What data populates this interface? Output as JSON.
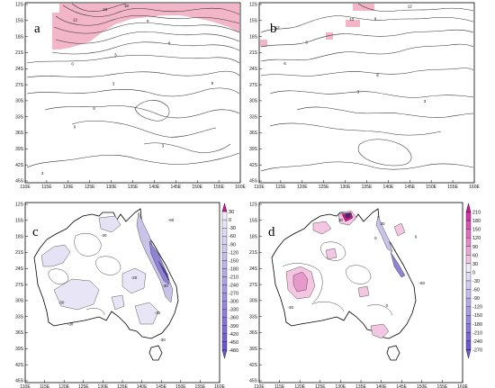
{
  "chart_data": [
    {
      "panel": "a",
      "type": "heatmap",
      "x_ticks": [
        "110E",
        "115E",
        "120E",
        "125E",
        "130E",
        "135E",
        "140E",
        "145E",
        "150E",
        "155E",
        "160E"
      ],
      "y_ticks": [
        "12S",
        "15S",
        "18S",
        "21S",
        "24S",
        "27S",
        "30S",
        "33S",
        "36S",
        "39S",
        "42S",
        "45S"
      ],
      "xlim": [
        110,
        160
      ],
      "ylim": [
        -45,
        -12
      ],
      "contour_labels": [
        {
          "text": "18",
          "x": 133.5,
          "y": -12.8
        },
        {
          "text": "15",
          "x": 128.6,
          "y": -13.5
        },
        {
          "text": "12",
          "x": 121.6,
          "y": -15.4
        },
        {
          "text": "9",
          "x": 138.5,
          "y": -15.6
        },
        {
          "text": "6",
          "x": 143.5,
          "y": -19.7
        },
        {
          "text": "3",
          "x": 131.0,
          "y": -21.8
        },
        {
          "text": "0",
          "x": 121.0,
          "y": -23.5
        },
        {
          "text": "3",
          "x": 130.5,
          "y": -27.1
        },
        {
          "text": "0",
          "x": 126.0,
          "y": -31.6
        },
        {
          "text": "0",
          "x": 121.5,
          "y": -35.0
        },
        {
          "text": "3",
          "x": 142.0,
          "y": -38.5
        },
        {
          "text": "9",
          "x": 153.5,
          "y": -27.0
        },
        {
          "text": "3",
          "x": 114.0,
          "y": -43.5
        }
      ],
      "shaded_region": "values above 9 (pink), northern Australia"
    },
    {
      "panel": "b",
      "type": "heatmap",
      "x_ticks": [
        "110E",
        "115E",
        "120E",
        "125E",
        "130E",
        "135E",
        "140E",
        "145E",
        "150E",
        "155E",
        "160E"
      ],
      "y_ticks": [
        "12S",
        "15S",
        "18S",
        "21S",
        "24S",
        "27S",
        "30S",
        "33S",
        "36S",
        "39S",
        "42S",
        "45S"
      ],
      "xlim": [
        110,
        160
      ],
      "ylim": [
        -45,
        -12
      ],
      "contour_labels": [
        {
          "text": "12",
          "x": 145.0,
          "y": -12.9
        },
        {
          "text": "12",
          "x": 114.2,
          "y": -16.8
        },
        {
          "text": "12",
          "x": 131.5,
          "y": -15.3
        },
        {
          "text": "9",
          "x": 137.0,
          "y": -15.2
        },
        {
          "text": "6",
          "x": 121.0,
          "y": -19.5
        },
        {
          "text": "6",
          "x": 116.0,
          "y": -23.4
        },
        {
          "text": "6",
          "x": 137.5,
          "y": -25.5
        },
        {
          "text": "3",
          "x": 133.0,
          "y": -28.6
        },
        {
          "text": "3",
          "x": 148.5,
          "y": -30.3
        }
      ],
      "shaded_region": "values above 9 (pink), northern Australia"
    },
    {
      "panel": "c",
      "type": "heatmap",
      "x_ticks": [
        "110E",
        "115E",
        "120E",
        "125E",
        "130E",
        "135E",
        "140E",
        "145E",
        "150E",
        "155E",
        "160E"
      ],
      "y_ticks": [
        "12S",
        "15S",
        "18S",
        "21S",
        "24S",
        "27S",
        "30S",
        "33S",
        "36S",
        "39S",
        "42S",
        "45S"
      ],
      "xlim": [
        110,
        160
      ],
      "ylim": [
        -45,
        -12
      ],
      "colorbar": [
        "30",
        "0",
        "-30",
        "-60",
        "-90",
        "-120",
        "-150",
        "-180",
        "-210",
        "-240",
        "-270",
        "-300",
        "-330",
        "-360",
        "-390",
        "-420",
        "-450",
        "-480"
      ],
      "contour_labels": [
        {
          "text": "-30",
          "x": 130.2,
          "y": -18.3
        },
        {
          "text": "-30",
          "x": 138.0,
          "y": -26.0
        },
        {
          "text": "-30",
          "x": 119.3,
          "y": -30.6
        },
        {
          "text": "-30",
          "x": 121.6,
          "y": -34.5
        },
        {
          "text": "-30",
          "x": 146.0,
          "y": -27.5
        },
        {
          "text": "-30",
          "x": 144.0,
          "y": -32.5
        },
        {
          "text": "-30",
          "x": 145.3,
          "y": -37.4
        },
        {
          "text": "-60",
          "x": 147.5,
          "y": -15.5
        }
      ]
    },
    {
      "panel": "d",
      "type": "heatmap",
      "x_ticks": [
        "110E",
        "115E",
        "120E",
        "125E",
        "130E",
        "135E",
        "140E",
        "145E",
        "150E",
        "155E",
        "160E"
      ],
      "y_ticks": [
        "12S",
        "15S",
        "18S",
        "21S",
        "24S",
        "27S",
        "30S",
        "33S",
        "36S",
        "39S",
        "42S",
        "45S"
      ],
      "xlim": [
        110,
        160
      ],
      "ylim": [
        -45,
        -12
      ],
      "colorbar": [
        "210",
        "180",
        "150",
        "120",
        "90",
        "60",
        "30",
        "0",
        "-30",
        "-60",
        "-90",
        "-120",
        "-150",
        "-180",
        "-210",
        "-240",
        "-270"
      ],
      "contour_labels": [
        {
          "text": "30",
          "x": 130.0,
          "y": -15.5
        },
        {
          "text": "0",
          "x": 138.6,
          "y": -18.8
        },
        {
          "text": "-30",
          "x": 117.7,
          "y": -31.5
        },
        {
          "text": "0",
          "x": 141.4,
          "y": -31.1
        },
        {
          "text": "-60",
          "x": 150.0,
          "y": -27.0
        },
        {
          "text": "30",
          "x": 140.3,
          "y": -16.1
        },
        {
          "text": "0",
          "x": 148.5,
          "y": -18.5
        }
      ]
    }
  ],
  "panel_labels": [
    "a",
    "b",
    "c",
    "d"
  ]
}
